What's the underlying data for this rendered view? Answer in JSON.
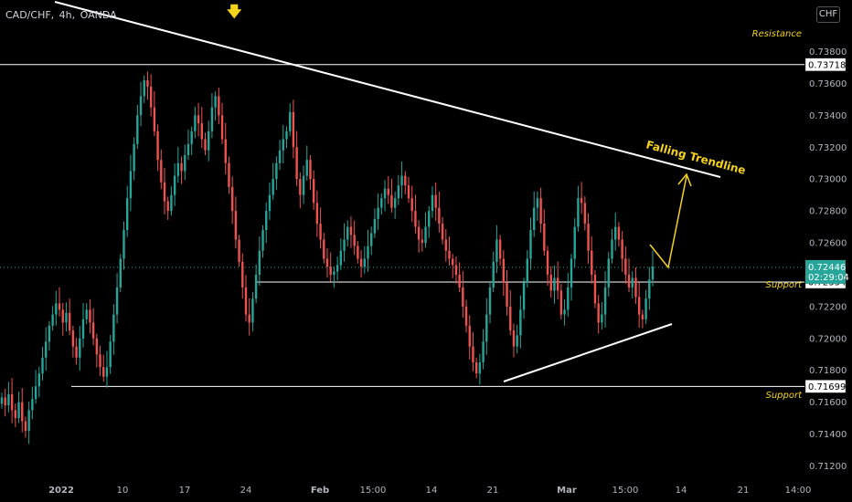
{
  "header": {
    "symbol": "CAD/CHF,",
    "interval": "4h,",
    "exchange": "OANDA",
    "currency_button": "CHF",
    "arrow_glyph": "🡇"
  },
  "colors": {
    "background": "#000000",
    "up_candle": "#26a69a",
    "down_candle": "#ef5350",
    "drawings": "#ffffff",
    "annotation": "#f5d21c",
    "current_price_bg": "#26a69a"
  },
  "chart_data": {
    "type": "candlestick",
    "symbol": "CAD/CHF",
    "timeframe": "4h",
    "source": "OANDA",
    "y_axis": {
      "range": [
        0.7118,
        0.7386
      ],
      "ticks": [
        "0.73800",
        "0.73600",
        "0.73400",
        "0.73200",
        "0.73000",
        "0.72800",
        "0.72600",
        "0.72400",
        "0.72200",
        "0.72000",
        "0.71800",
        "0.71600",
        "0.71400",
        "0.71200"
      ]
    },
    "x_axis": {
      "labels": [
        "2022",
        "10",
        "17",
        "24",
        "Feb",
        "15:00",
        "14",
        "21",
        "Mar",
        "15:00",
        "14",
        "21",
        "14:00"
      ],
      "bold": [
        "2022",
        "Feb",
        "Mar"
      ]
    },
    "closes": [
      0.7163,
      0.7158,
      0.7165,
      0.7155,
      0.715,
      0.716,
      0.7148,
      0.7142,
      0.7155,
      0.7162,
      0.717,
      0.7178,
      0.7188,
      0.7198,
      0.7208,
      0.7215,
      0.7222,
      0.7218,
      0.721,
      0.7216,
      0.7205,
      0.7195,
      0.7188,
      0.72,
      0.7212,
      0.7218,
      0.721,
      0.72,
      0.719,
      0.7182,
      0.7176,
      0.7182,
      0.7198,
      0.7215,
      0.7232,
      0.725,
      0.7268,
      0.7288,
      0.7305,
      0.7322,
      0.734,
      0.7352,
      0.7362,
      0.7358,
      0.7345,
      0.733,
      0.7312,
      0.7298,
      0.7286,
      0.728,
      0.729,
      0.7302,
      0.731,
      0.7305,
      0.7315,
      0.7322,
      0.733,
      0.734,
      0.7335,
      0.7325,
      0.7318,
      0.733,
      0.7345,
      0.7352,
      0.734,
      0.7325,
      0.731,
      0.7295,
      0.728,
      0.7262,
      0.7248,
      0.7232,
      0.7215,
      0.721,
      0.7225,
      0.724,
      0.7255,
      0.7268,
      0.728,
      0.729,
      0.73,
      0.731,
      0.7318,
      0.7325,
      0.733,
      0.7342,
      0.732,
      0.73,
      0.729,
      0.7302,
      0.7312,
      0.73,
      0.7285,
      0.7272,
      0.7262,
      0.725,
      0.7245,
      0.724,
      0.7242,
      0.7246,
      0.7255,
      0.7262,
      0.727,
      0.7265,
      0.7258,
      0.725,
      0.7245,
      0.725,
      0.7258,
      0.7266,
      0.7275,
      0.7282,
      0.7288,
      0.7294,
      0.729,
      0.7282,
      0.7288,
      0.7296,
      0.7302,
      0.7296,
      0.7288,
      0.728,
      0.727,
      0.7262,
      0.726,
      0.727,
      0.728,
      0.729,
      0.7282,
      0.7272,
      0.7262,
      0.7255,
      0.725,
      0.7246,
      0.724,
      0.7232,
      0.722,
      0.7208,
      0.7195,
      0.7185,
      0.7178,
      0.7185,
      0.7198,
      0.7215,
      0.7232,
      0.7248,
      0.7262,
      0.725,
      0.7235,
      0.722,
      0.7205,
      0.7195,
      0.7202,
      0.7218,
      0.7235,
      0.725,
      0.7268,
      0.7282,
      0.7288,
      0.7272,
      0.7255,
      0.724,
      0.723,
      0.7238,
      0.723,
      0.7215,
      0.7218,
      0.7232,
      0.725,
      0.727,
      0.7288,
      0.7285,
      0.7272,
      0.7255,
      0.724,
      0.7222,
      0.721,
      0.7215,
      0.7232,
      0.725,
      0.7262,
      0.727,
      0.7262,
      0.725,
      0.724,
      0.7232,
      0.7238,
      0.7226,
      0.7215,
      0.7212,
      0.7225,
      0.7237,
      0.7245
    ],
    "current_price": 0.72446,
    "countdown": "02:29:04",
    "levels": [
      {
        "name": "Resistance",
        "value": 0.73718,
        "label": "0.73718"
      },
      {
        "name": "Support",
        "value": 0.72354,
        "label": "0.72354"
      },
      {
        "name": "Support",
        "value": 0.71699,
        "label": "0.71699"
      }
    ],
    "annotations": {
      "resistance_label": "Resistance",
      "support_label_upper": "Support",
      "support_label_lower": "Support",
      "trendline_label": "Falling Trendline"
    }
  }
}
